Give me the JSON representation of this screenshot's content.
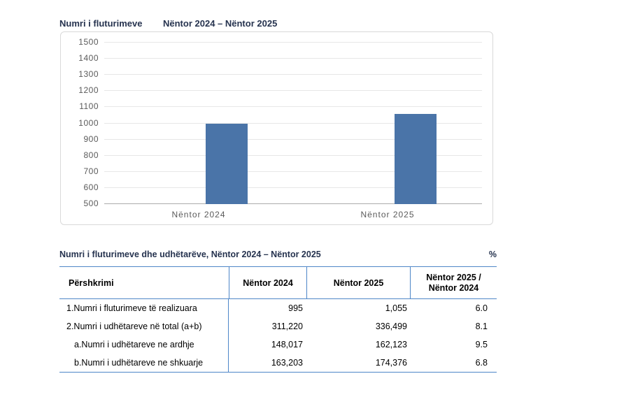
{
  "chart": {
    "title_left": "Numri i fluturimeve",
    "title_right": "Nëntor 2024 – Nëntor 2025",
    "colors": {
      "bar": "#4A74A8",
      "chart_border": "#D9D9D9",
      "grid": "#E7E7E7",
      "axis_line": "#ACACAC",
      "tick_text": "#5A5A5A",
      "title_text": "#26334F"
    }
  },
  "chart_data": {
    "type": "bar",
    "title": "Numri i fluturimeve",
    "subtitle": "Nëntor 2024 – Nëntor 2025",
    "categories": [
      "Nëntor 2024",
      "Nëntor 2025"
    ],
    "values": [
      995,
      1055
    ],
    "xlabel": "",
    "ylabel": "",
    "ylim": [
      500,
      1500
    ],
    "ytick_step": 100,
    "yticks": [
      500,
      600,
      700,
      800,
      900,
      1000,
      1100,
      1200,
      1300,
      1400,
      1500
    ],
    "grid": true,
    "legend": false,
    "bar_color": "#4A74A8"
  },
  "table": {
    "title": "Numri i fluturimeve dhe udhëtarëve, Nëntor 2024 – Nëntor 2025",
    "unit_label": "%",
    "border_color": "#4E86C8",
    "col_headers": {
      "c1": "Përshkrimi",
      "c2": "Nëntor 2024",
      "c3": "Nëntor 2025",
      "c4a": "Nëntor 2025 /",
      "c4b": "Nëntor 2024"
    },
    "rows": [
      {
        "label": "1.Numri i fluturimeve të realizuara",
        "v2024": "995",
        "v2025": "1,055",
        "pct": "6.0"
      },
      {
        "label": "2.Numri i udhëtareve në total (a+b)",
        "v2024": "311,220",
        "v2025": "336,499",
        "pct": "8.1"
      },
      {
        "label": "a.Numri i udhëtareve ne ardhje",
        "v2024": "148,017",
        "v2025": "162,123",
        "pct": "9.5"
      },
      {
        "label": "b.Numri i udhëtareve ne shkuarje",
        "v2024": "163,203",
        "v2025": "174,376",
        "pct": "6.8"
      }
    ]
  }
}
